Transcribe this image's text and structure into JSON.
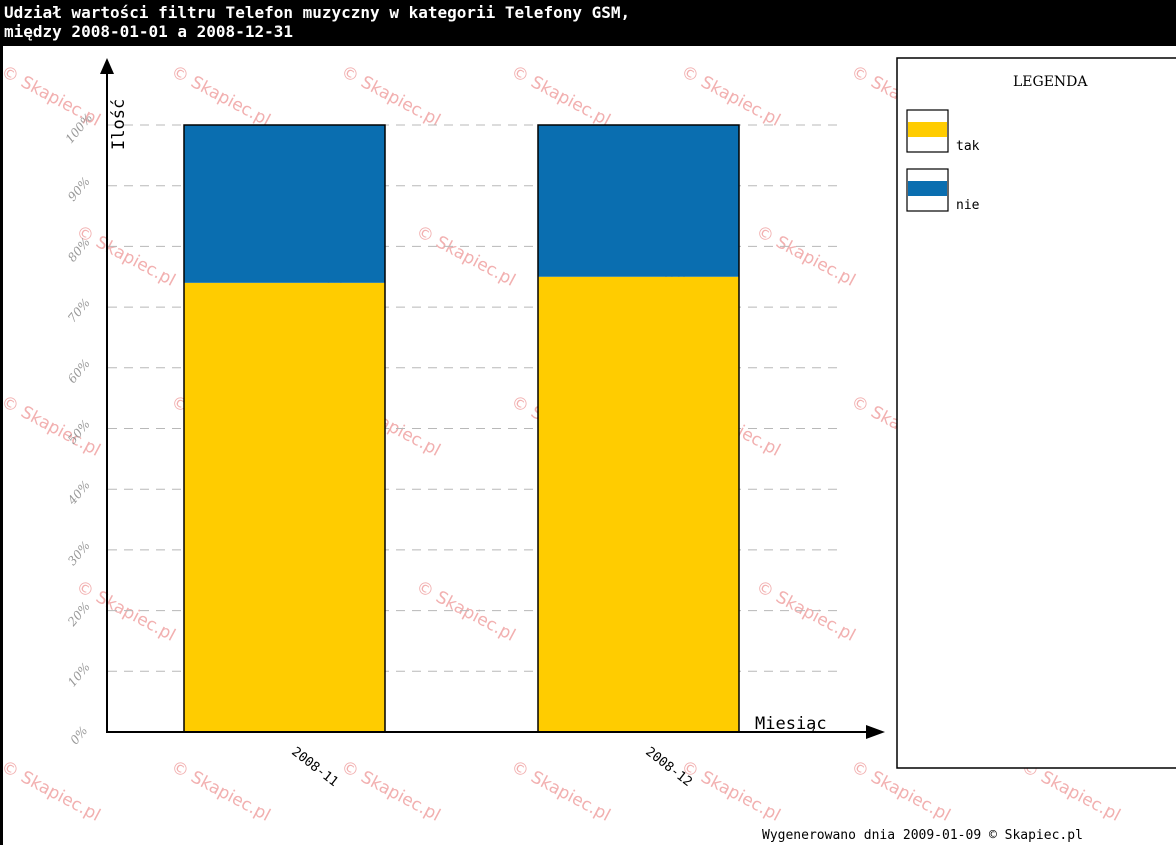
{
  "chart_data": {
    "type": "bar",
    "stacked": true,
    "title_line1": "Udział wartości filtru Telefon muzyczny w kategorii Telefony GSM,",
    "title_line2": "między 2008-01-01 a 2008-12-31",
    "xlabel": "Miesiąc",
    "ylabel": "Ilość",
    "ylim": [
      0,
      100
    ],
    "yticks": [
      "0%",
      "10%",
      "20%",
      "30%",
      "40%",
      "50%",
      "60%",
      "70%",
      "80%",
      "90%",
      "100%"
    ],
    "categories": [
      "2008-11",
      "2008-12"
    ],
    "series": [
      {
        "name": "tak",
        "values": [
          74,
          75
        ],
        "color": "#ffcc00"
      },
      {
        "name": "nie",
        "values": [
          26,
          25
        ],
        "color": "#0a6eb0"
      }
    ],
    "grid": true,
    "legend_position": "right",
    "legend_title": "LEGENDA"
  },
  "footer": "Wygenerowano dnia 2009-01-09 © Skapiec.pl",
  "watermark": "© Skapiec.pl"
}
